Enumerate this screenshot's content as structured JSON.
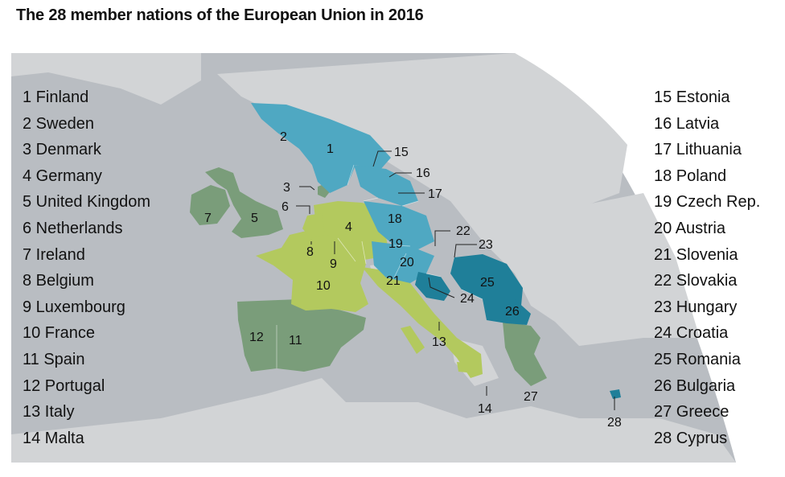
{
  "title": "The 28 member nations of the European Union in 2016",
  "colors": {
    "ocean": "#b9bdc2",
    "land": "#d2d4d6",
    "group_western": "#b3c95e",
    "group_northern": "#4fa8c2",
    "group_eastern": "#1f7f99",
    "group_green": "#7a9d7a"
  },
  "legend_left": [
    "1 Finland",
    "2 Sweden",
    "3 Denmark",
    "4 Germany",
    "5 United Kingdom",
    "6 Netherlands",
    "7 Ireland",
    "8 Belgium",
    "9 Luxembourg",
    "10 France",
    "11 Spain",
    "12 Portugal",
    "13 Italy",
    "14 Malta"
  ],
  "legend_right": [
    "15 Estonia",
    "16 Latvia",
    "17 Lithuania",
    "18 Poland",
    "19 Czech Rep.",
    "20 Austria",
    "21 Slovenia",
    "22 Slovakia",
    "23 Hungary",
    "24 Croatia",
    "25 Romania",
    "26 Bulgaria",
    "27 Greece",
    "28 Cyprus"
  ],
  "map_labels": [
    "1",
    "2",
    "3",
    "4",
    "5",
    "6",
    "7",
    "8",
    "9",
    "10",
    "11",
    "12",
    "13",
    "14",
    "15",
    "16",
    "17",
    "18",
    "19",
    "20",
    "21",
    "22",
    "23",
    "24",
    "25",
    "26",
    "27",
    "28"
  ]
}
